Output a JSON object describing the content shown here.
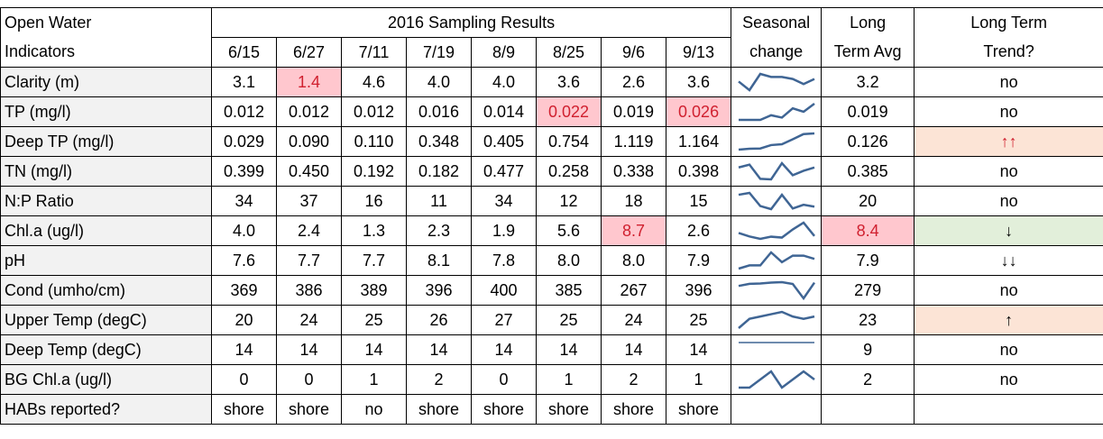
{
  "header": {
    "col0": [
      "Open Water",
      "Indicators"
    ],
    "group": "2016 Sampling Results",
    "dates": [
      "6/15",
      "6/27",
      "7/11",
      "7/19",
      "8/9",
      "8/25",
      "9/6",
      "9/13"
    ],
    "seasonal": [
      "Seasonal",
      "change"
    ],
    "avg": [
      "Long",
      "Term Avg"
    ],
    "trend": [
      "Long Term",
      "Trend?"
    ]
  },
  "flag_bg": "#ffc7ce",
  "flag_color": "#d0202f",
  "spark_color": "#3f6594",
  "rows": [
    {
      "label": "Clarity (m)",
      "values": [
        "3.1",
        "1.4",
        "4.6",
        "4.0",
        "4.0",
        "3.6",
        "2.6",
        "3.6"
      ],
      "avg": "3.2",
      "trend": "no",
      "flag_values": [
        1
      ]
    },
    {
      "label": "TP (mg/l)",
      "values": [
        "0.012",
        "0.012",
        "0.012",
        "0.016",
        "0.014",
        "0.022",
        "0.019",
        "0.026"
      ],
      "avg": "0.019",
      "trend": "no",
      "flag_values": [
        5,
        7
      ]
    },
    {
      "label": "Deep TP (mg/l)",
      "values": [
        "0.029",
        "0.090",
        "0.110",
        "0.348",
        "0.405",
        "0.754",
        "1.119",
        "1.164"
      ],
      "avg": "0.126",
      "trend": "↑↑",
      "trend_bg": "#fce4d6",
      "trend_color": "#d0202f"
    },
    {
      "label": "TN (mg/l)",
      "values": [
        "0.399",
        "0.450",
        "0.192",
        "0.182",
        "0.477",
        "0.258",
        "0.338",
        "0.398"
      ],
      "avg": "0.385",
      "trend": "no"
    },
    {
      "label": "N:P Ratio",
      "values": [
        "34",
        "37",
        "16",
        "11",
        "34",
        "12",
        "18",
        "15"
      ],
      "avg": "20",
      "trend": "no"
    },
    {
      "label": "Chl.a (ug/l)",
      "values": [
        "4.0",
        "2.4",
        "1.3",
        "2.3",
        "1.9",
        "5.6",
        "8.7",
        "2.6"
      ],
      "avg": "8.4",
      "trend": "↓",
      "flag_values": [
        6
      ],
      "flag_avg": true,
      "trend_bg": "#e2efda"
    },
    {
      "label": "pH",
      "values": [
        "7.6",
        "7.7",
        "7.7",
        "8.1",
        "7.8",
        "8.0",
        "8.0",
        "7.9"
      ],
      "avg": "7.9",
      "trend": "↓↓"
    },
    {
      "label": "Cond (umho/cm)",
      "values": [
        "369",
        "386",
        "389",
        "396",
        "400",
        "385",
        "267",
        "396"
      ],
      "avg": "279",
      "trend": "no"
    },
    {
      "label": "Upper Temp (degC)",
      "values": [
        "20",
        "24",
        "25",
        "26",
        "27",
        "25",
        "24",
        "25"
      ],
      "avg": "23",
      "trend": "↑",
      "trend_bg": "#fce4d6"
    },
    {
      "label": "Deep Temp (degC)",
      "values": [
        "14",
        "14",
        "14",
        "14",
        "14",
        "14",
        "14",
        "14"
      ],
      "avg": "9",
      "trend": "no"
    },
    {
      "label": "BG Chl.a (ug/l)",
      "values": [
        "0",
        "0",
        "1",
        "2",
        "0",
        "1",
        "2",
        "1"
      ],
      "avg": "2",
      "trend": "no"
    },
    {
      "label": "HABs reported?",
      "values": [
        "shore",
        "shore",
        "no",
        "shore",
        "shore",
        "shore",
        "shore",
        "shore"
      ]
    }
  ]
}
